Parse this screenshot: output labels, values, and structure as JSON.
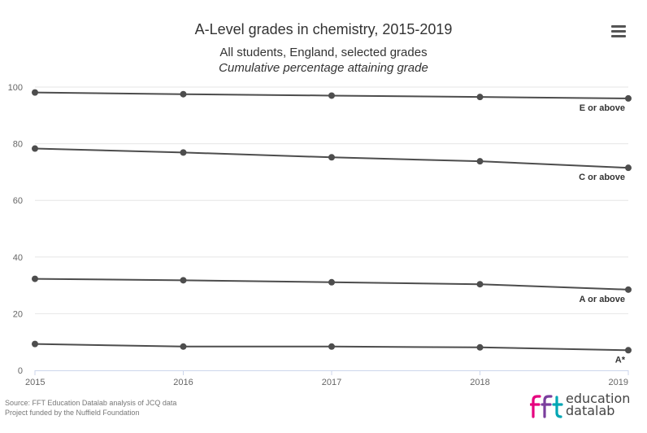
{
  "chart_data": {
    "type": "line",
    "title": "A-Level grades in chemistry, 2015-2019",
    "subtitle": "All students, England, selected grades",
    "subtitle2": "Cumulative percentage attaining grade",
    "x": [
      "2015",
      "2016",
      "2017",
      "2018",
      "2019"
    ],
    "ylim": [
      0,
      100
    ],
    "yticks": [
      "0",
      "20",
      "40",
      "60",
      "80",
      "100"
    ],
    "grid": "horizontal",
    "series": [
      {
        "name": "E or above",
        "values": [
          98.1,
          97.5,
          97.0,
          96.5,
          96.0
        ]
      },
      {
        "name": "C or above",
        "values": [
          78.3,
          76.9,
          75.2,
          73.8,
          71.5
        ]
      },
      {
        "name": "A or above",
        "values": [
          32.3,
          31.8,
          31.1,
          30.4,
          28.5
        ]
      },
      {
        "name": "A*",
        "values": [
          9.3,
          8.4,
          8.4,
          8.1,
          7.1
        ]
      }
    ],
    "colors": {
      "line": "#4d4d4d",
      "grid": "#e6e6e6",
      "axis": "#ccd6eb",
      "text": "#333333"
    }
  },
  "source": {
    "line1": "Source: FFT Education Datalab analysis of JCQ data",
    "line2": "Project funded by the Nuffield Foundation"
  },
  "logo": {
    "line1": "education",
    "line2": "datalab",
    "icon": "fft-logo-icon"
  },
  "menu": {
    "icon": "hamburger-menu-icon"
  }
}
